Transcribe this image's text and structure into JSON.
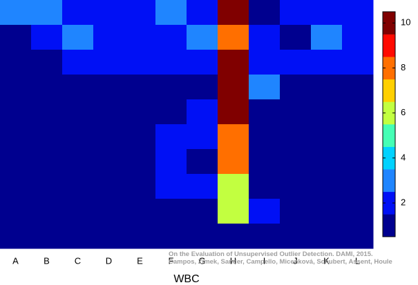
{
  "chart_data": {
    "type": "heatmap",
    "xlabel": "WBC",
    "categories": [
      "A",
      "B",
      "C",
      "D",
      "E",
      "F",
      "G",
      "H",
      "I",
      "J",
      "K",
      "L"
    ],
    "z": [
      [
        3,
        3,
        2,
        2,
        2,
        3,
        2,
        10,
        1,
        2,
        2,
        2
      ],
      [
        1,
        2,
        3,
        2,
        2,
        2,
        3,
        8,
        2,
        1,
        3,
        2
      ],
      [
        1,
        1,
        2,
        2,
        2,
        2,
        2,
        10,
        2,
        2,
        2,
        2
      ],
      [
        1,
        1,
        1,
        1,
        1,
        1,
        1,
        10,
        3,
        1,
        1,
        1
      ],
      [
        1,
        1,
        1,
        1,
        1,
        1,
        2,
        10,
        1,
        1,
        1,
        1
      ],
      [
        1,
        1,
        1,
        1,
        1,
        2,
        2,
        8,
        1,
        1,
        1,
        1
      ],
      [
        1,
        1,
        1,
        1,
        1,
        2,
        1,
        8,
        1,
        1,
        1,
        1
      ],
      [
        1,
        1,
        1,
        1,
        1,
        2,
        2,
        6,
        1,
        1,
        1,
        1
      ],
      [
        1,
        1,
        1,
        1,
        1,
        1,
        1,
        6,
        2,
        1,
        1,
        1
      ],
      [
        1,
        1,
        1,
        1,
        1,
        1,
        1,
        1,
        1,
        1,
        1,
        1
      ]
    ],
    "colorbar": {
      "lim": [
        0.5,
        10.5
      ],
      "ticks": [
        2,
        4,
        6,
        8,
        10
      ],
      "colors": [
        "#00008f",
        "#0010f5",
        "#1f85ff",
        "#00d2ff",
        "#45ffb5",
        "#c2ff40",
        "#ffd000",
        "#ff6f00",
        "#ff0a00",
        "#800000"
      ]
    },
    "annotations": [
      "On the Evaluation of Unsupervised Outlier Detection. DAMI, 2015.",
      "Campos, Zimek, Sander, Campello, Micenková, Schubert, Assent, Houle"
    ]
  }
}
